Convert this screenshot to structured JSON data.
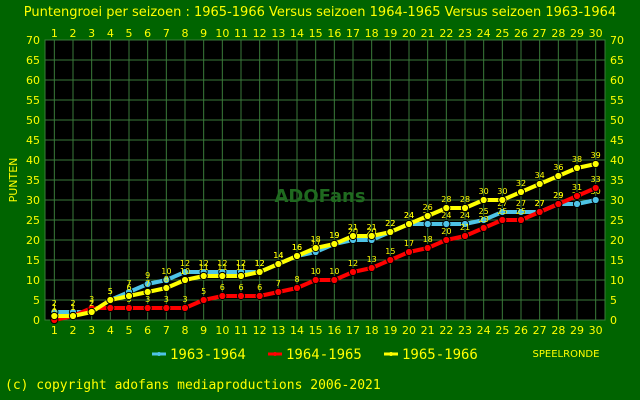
{
  "colors": {
    "page_bg": "#006400",
    "plot_bg": "#000000",
    "grid": "#3a7a3a",
    "text": "#ffff00",
    "series_1963_1964": "#4ec3e6",
    "series_1964_1965": "#ff0000",
    "series_1965_1966": "#ffff00"
  },
  "footer": {
    "copyright": "(c) copyright adofans mediaproductions 2006-2021"
  },
  "watermark": "ADOFans",
  "chart_data": {
    "type": "line",
    "title": "Puntengroei per seizoen : 1965-1966 Versus seizoen 1964-1965 Versus seizoen 1963-1964",
    "xlabel": "SPEELRONDE",
    "ylabel": "PUNTEN",
    "xlim": [
      1,
      30
    ],
    "ylim": [
      0,
      70
    ],
    "y_ticks": [
      0,
      5,
      10,
      15,
      20,
      25,
      30,
      35,
      40,
      45,
      50,
      55,
      60,
      65,
      70
    ],
    "x": [
      1,
      2,
      3,
      4,
      5,
      6,
      7,
      8,
      9,
      10,
      11,
      12,
      13,
      14,
      15,
      16,
      17,
      18,
      19,
      20,
      21,
      22,
      23,
      24,
      25,
      26,
      27,
      28,
      29,
      30
    ],
    "grid": true,
    "legend_position": "bottom",
    "series": [
      {
        "name": "1963-1964",
        "color": "#4ec3e6",
        "values": [
          2,
          2,
          2,
          5,
          7,
          9,
          10,
          12,
          12,
          12,
          12,
          12,
          14,
          16,
          17,
          19,
          20,
          20,
          22,
          24,
          24,
          24,
          24,
          25,
          27,
          27,
          27,
          29,
          29,
          30
        ]
      },
      {
        "name": "1964-1965",
        "color": "#ff0000",
        "values": [
          0,
          1,
          3,
          3,
          3,
          3,
          3,
          3,
          5,
          6,
          6,
          6,
          7,
          8,
          10,
          10,
          12,
          13,
          15,
          17,
          18,
          20,
          21,
          23,
          25,
          25,
          27,
          29,
          31,
          33
        ]
      },
      {
        "name": "1965-1966",
        "color": "#ffff00",
        "values": [
          1,
          1,
          2,
          5,
          6,
          7,
          8,
          10,
          11,
          11,
          11,
          12,
          14,
          16,
          18,
          19,
          21,
          21,
          22,
          24,
          26,
          28,
          28,
          30,
          30,
          32,
          34,
          36,
          38,
          39
        ]
      }
    ]
  }
}
